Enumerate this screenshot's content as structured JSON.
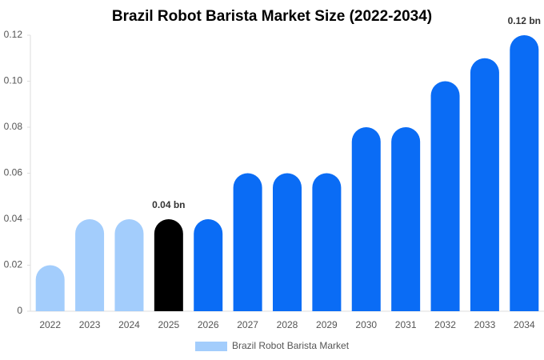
{
  "chart_data": {
    "type": "bar",
    "title": "Brazil Robot Barista Market Size (2022-2034)",
    "categories": [
      "2022",
      "2023",
      "2024",
      "2025",
      "2026",
      "2027",
      "2028",
      "2029",
      "2030",
      "2031",
      "2032",
      "2033",
      "2034"
    ],
    "series": [
      {
        "name": "Brazil Robot Barista Market",
        "color": "#a3cdfc",
        "values": [
          0.02,
          0.04,
          0.04,
          0.04,
          0.04,
          0.06,
          0.06,
          0.06,
          0.08,
          0.08,
          0.1,
          0.11,
          0.12
        ],
        "colors": [
          "#a3cdfc",
          "#a3cdfc",
          "#a3cdfc",
          "#000000",
          "#0a6cf5",
          "#0a6cf5",
          "#0a6cf5",
          "#0a6cf5",
          "#0a6cf5",
          "#0a6cf5",
          "#0a6cf5",
          "#0a6cf5",
          "#0a6cf5"
        ],
        "value_labels": [
          null,
          null,
          null,
          "0.04 bn",
          null,
          null,
          null,
          null,
          null,
          null,
          null,
          null,
          "0.12 bn"
        ]
      }
    ],
    "ylim": [
      0,
      0.12
    ],
    "yticks": [
      0,
      0.02,
      0.04,
      0.06,
      0.08,
      {
        "value": 0.1,
        "label": "0.10"
      },
      0.12
    ],
    "grid": false,
    "legend": "bottom"
  }
}
